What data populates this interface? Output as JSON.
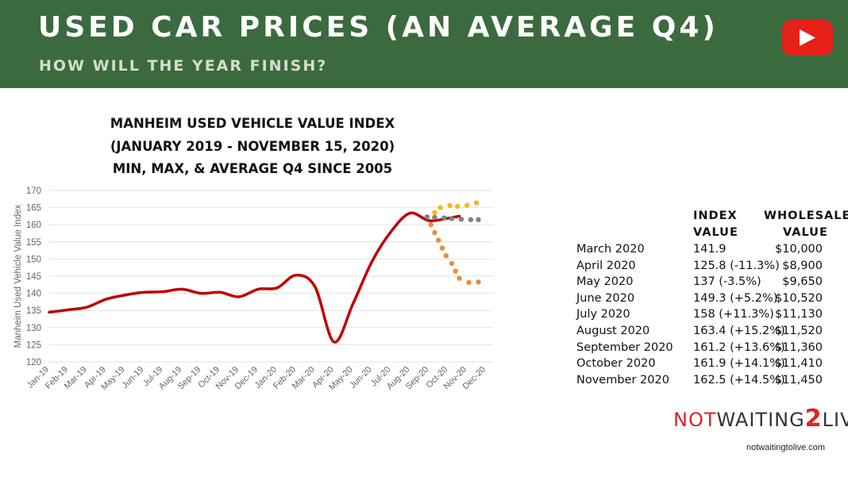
{
  "header": {
    "title": "USED CAR PRICES (AN AVERAGE Q4)",
    "subtitle": "HOW WILL THE YEAR FINISH?",
    "play_icon": "youtube-play-icon",
    "bg_color": "#3b6a3f"
  },
  "chart_data": {
    "type": "line",
    "title": [
      "MANHEIM USED VEHICLE VALUE INDEX",
      "(JANUARY 2019 - NOVEMBER 15, 2020)",
      "MIN, MAX, & AVERAGE Q4 SINCE 2005"
    ],
    "ylabel": "Manheim Used Vehicle Value Index",
    "xlabel": "",
    "ylim": [
      120,
      170
    ],
    "yticks": [
      170,
      165,
      160,
      155,
      150,
      145,
      140,
      135,
      130,
      125,
      120
    ],
    "categories": [
      "Jan-19",
      "Feb-19",
      "Mar-19",
      "Apr-19",
      "May-19",
      "Jun-19",
      "Jul-19",
      "Aug-19",
      "Sep-19",
      "Oct-19",
      "Nov-19",
      "Dec-19",
      "Jan-20",
      "Feb-20",
      "Mar-20",
      "Apr-20",
      "May-20",
      "Jun-20",
      "Jul-20",
      "Aug-20",
      "Sep-20",
      "Oct-20",
      "Nov-20",
      "Dec-20"
    ],
    "grid": true,
    "series": [
      {
        "style": "solid",
        "color": "#c00000",
        "x": [
          0,
          1,
          2,
          3,
          4,
          5,
          6,
          7,
          8,
          9,
          10,
          11,
          12,
          13,
          14,
          15,
          16,
          17,
          18,
          19,
          20,
          21,
          21.6
        ],
        "values": [
          134.5,
          135.2,
          136,
          138.3,
          139.5,
          140.3,
          140.5,
          141.2,
          140,
          140.3,
          139,
          141.2,
          141.6,
          145.3,
          141.9,
          125.8,
          137,
          149.3,
          158,
          163.4,
          161.2,
          161.9,
          162.5
        ]
      },
      {
        "style": "dotted",
        "color": "#808080",
        "x": [
          19.9,
          20.3,
          20.8,
          21.2,
          21.7,
          22.2,
          22.6
        ],
        "values": [
          162.3,
          162.2,
          162,
          161.8,
          161.6,
          161.5,
          161.5
        ]
      },
      {
        "style": "dotted",
        "color": "#f5b622",
        "x": [
          20.3,
          20.6,
          21.1,
          21.5,
          22.0,
          22.5
        ],
        "values": [
          163.6,
          165,
          165.6,
          165.4,
          165.7,
          166.4
        ]
      },
      {
        "style": "dotted",
        "color": "#ec8a3c",
        "x": [
          20.1,
          20.3,
          20.5,
          20.7,
          20.9,
          21.2,
          21.4,
          21.6,
          22.1,
          22.6
        ],
        "values": [
          160,
          157.7,
          155.5,
          153.2,
          151,
          148.7,
          146.5,
          144.4,
          143.2,
          143.3
        ]
      }
    ]
  },
  "table": {
    "headers": [
      [
        "INDEX",
        "VALUE"
      ],
      [
        "WHOLESALE",
        "VALUE"
      ]
    ],
    "rows": [
      [
        "March 2020",
        "141.9",
        "$10,000"
      ],
      [
        "April 2020",
        "125.8 (-11.3%)",
        "$8,900"
      ],
      [
        "May 2020",
        "137 (-3.5%)",
        "$9,650"
      ],
      [
        "June 2020",
        "149.3 (+5.2%)",
        "$10,520"
      ],
      [
        "July 2020",
        "158 (+11.3%)",
        "$11,130"
      ],
      [
        "August 2020",
        "163.4 (+15.2%)",
        "$11,520"
      ],
      [
        "September 2020",
        "161.2 (+13.6%)",
        "$11,360"
      ],
      [
        "October 2020",
        "161.9 (+14.1%)",
        "$11,410"
      ],
      [
        "November 2020",
        "162.5 (+14.5%)",
        "$11,450"
      ]
    ]
  },
  "logo": {
    "part1": "NOT",
    "part2": "WAITING",
    "part3": "2",
    "part4": "LIVE",
    "url": "notwaitingtolive.com"
  }
}
